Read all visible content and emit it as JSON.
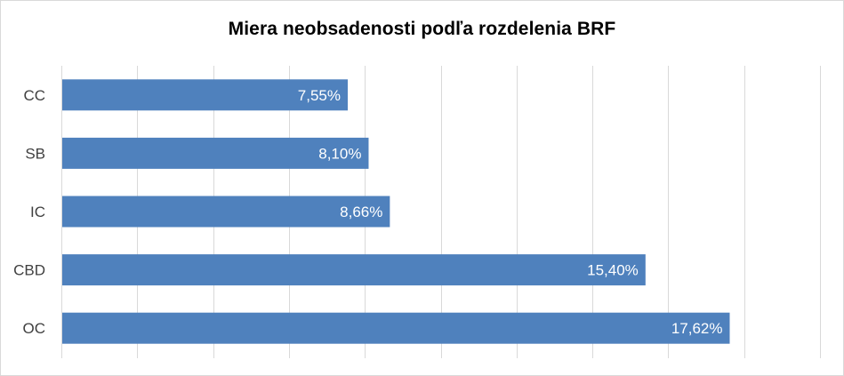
{
  "chart_data": {
    "type": "bar",
    "orientation": "horizontal",
    "title": "Miera neobsadenosti podľa rozdelenia BRF",
    "categories": [
      "CC",
      "SB",
      "IC",
      "CBD",
      "OC"
    ],
    "values": [
      7.55,
      8.1,
      8.66,
      15.4,
      17.62
    ],
    "data_labels": [
      "7,55%",
      "8,10%",
      "8,66%",
      "15,40%",
      "17,62%"
    ],
    "xlim": [
      0,
      20
    ],
    "x_gridline_step": 2,
    "grid": true,
    "legend": "none",
    "bar_color": "#4f81bd",
    "gridline_color": "#d9d9d9"
  }
}
